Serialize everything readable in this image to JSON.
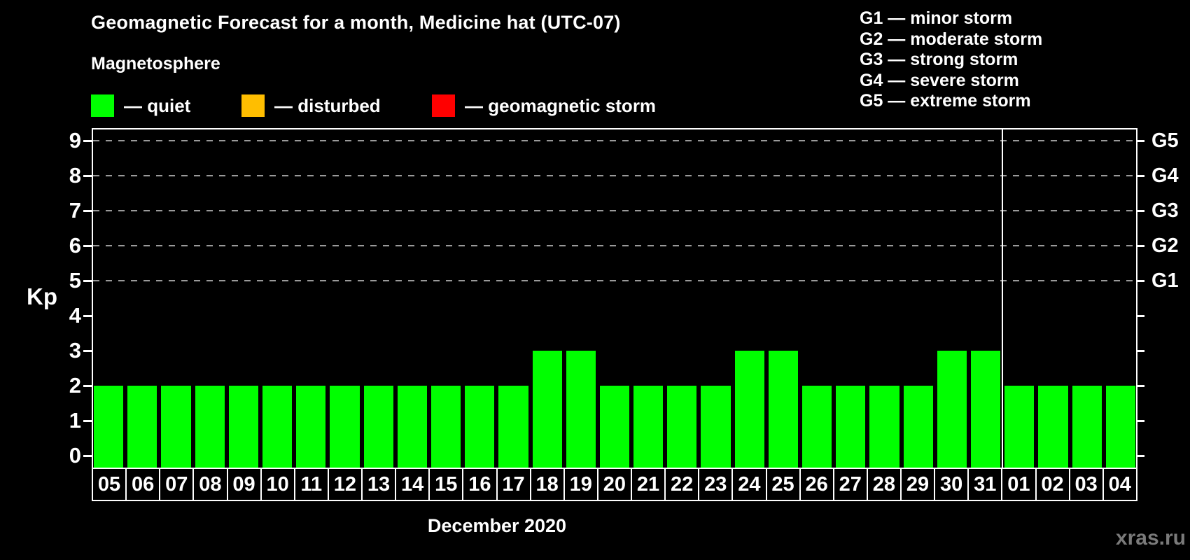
{
  "header": {
    "title": "Geomagnetic Forecast for a month, Medicine hat (UTC-07)",
    "subtitle": "Magnetosphere"
  },
  "activity_legend": [
    {
      "name": "quiet",
      "label": "— quiet",
      "color": "#00ff00"
    },
    {
      "name": "disturbed",
      "label": "— disturbed",
      "color": "#ffbe00"
    },
    {
      "name": "geomagnetic-storm",
      "label": "— geomagnetic storm",
      "color": "#ff0000"
    }
  ],
  "storm_scale_legend": [
    "G1 — minor storm",
    "G2 — moderate storm",
    "G3 — strong storm",
    "G4 — severe storm",
    "G5 — extreme storm"
  ],
  "watermark": "xras.ru",
  "chart_data": {
    "type": "bar",
    "title": "Geomagnetic Forecast for a month, Medicine hat (UTC-07)",
    "xlabel": "December 2020",
    "ylabel": "Kp",
    "ylim": [
      0,
      9
    ],
    "left_ticks": [
      0,
      1,
      2,
      3,
      4,
      5,
      6,
      7,
      8,
      9
    ],
    "right_tick_labels": [
      {
        "kp": 5,
        "label": "G1"
      },
      {
        "kp": 6,
        "label": "G2"
      },
      {
        "kp": 7,
        "label": "G3"
      },
      {
        "kp": 8,
        "label": "G4"
      },
      {
        "kp": 9,
        "label": "G5"
      }
    ],
    "gridlines_at": [
      5,
      6,
      7,
      8,
      9
    ],
    "grid_style": "dashed",
    "legend_position": "top",
    "categories": [
      "05",
      "06",
      "07",
      "08",
      "09",
      "10",
      "11",
      "12",
      "13",
      "14",
      "15",
      "16",
      "17",
      "18",
      "19",
      "20",
      "21",
      "22",
      "23",
      "24",
      "25",
      "26",
      "27",
      "28",
      "29",
      "30",
      "31",
      "01",
      "02",
      "03",
      "04"
    ],
    "values": [
      2,
      2,
      2,
      2,
      2,
      2,
      2,
      2,
      2,
      2,
      2,
      2,
      2,
      3,
      3,
      2,
      2,
      2,
      2,
      3,
      3,
      2,
      2,
      2,
      2,
      3,
      3,
      2,
      2,
      2,
      2
    ],
    "bar_color": "#00ff00",
    "month_divider_after_category": "31"
  }
}
